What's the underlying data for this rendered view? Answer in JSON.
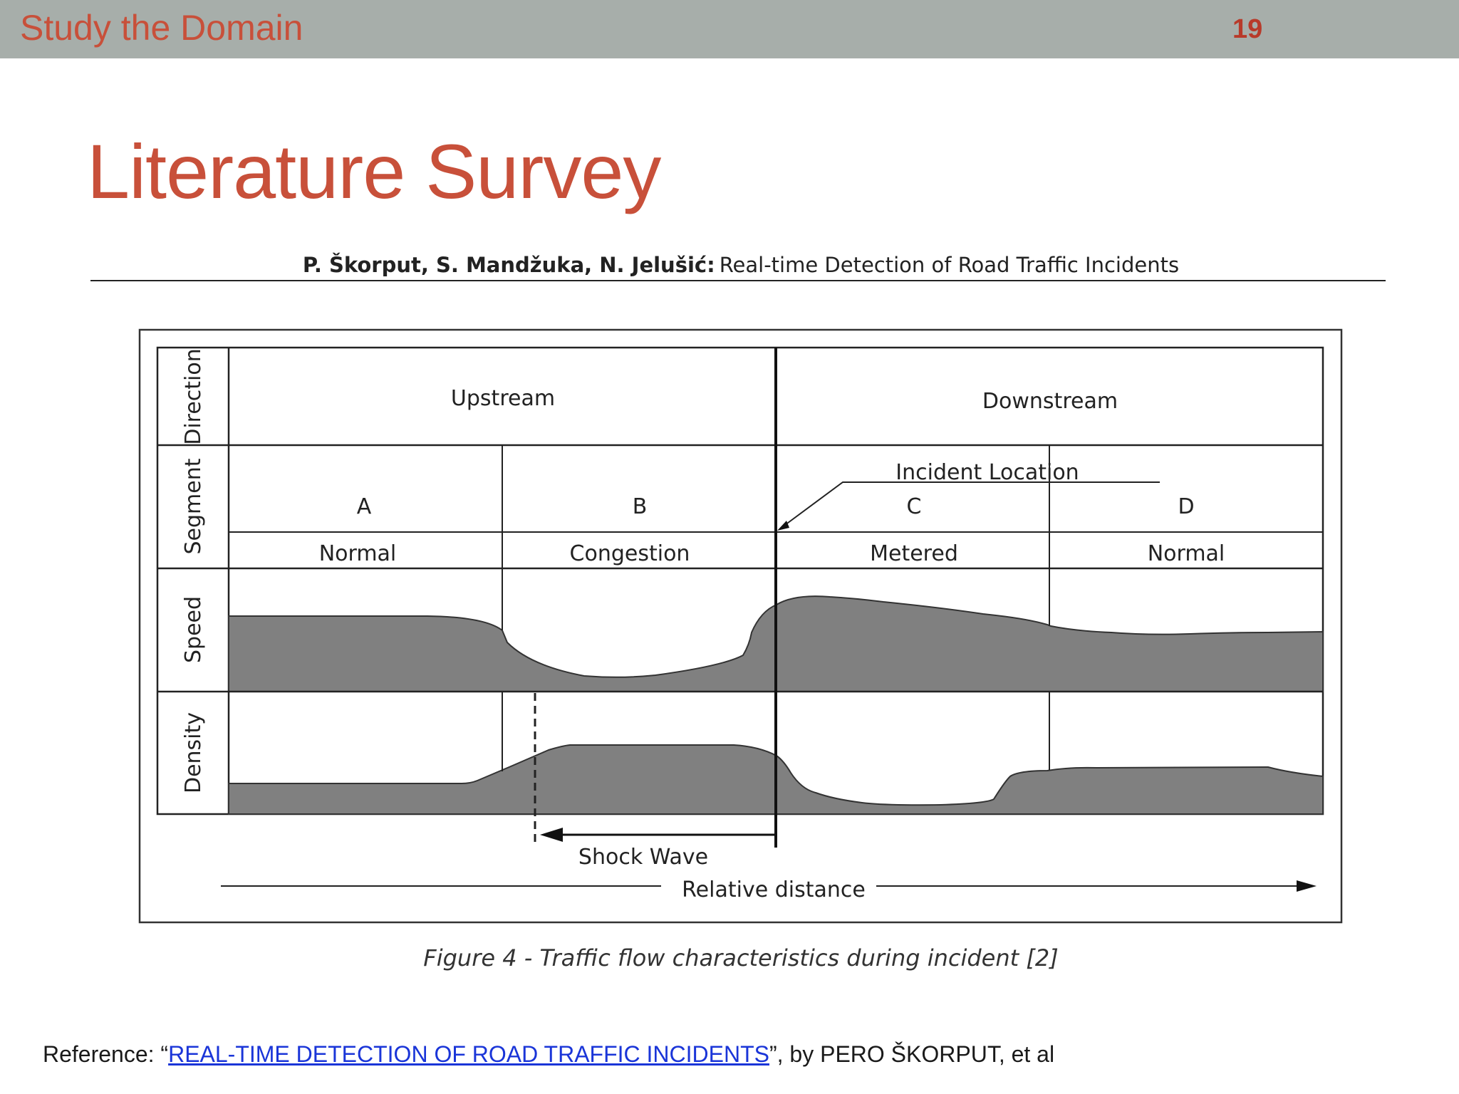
{
  "header": {
    "section": "Study the Domain",
    "page_number": "19"
  },
  "slide": {
    "title": "Literature Survey"
  },
  "paper": {
    "authors": "P. Škorput, S. Mandžuka, N. Jelušić:",
    "title": "Real-time Detection of Road Traffic Incidents"
  },
  "diagram": {
    "row_labels": {
      "direction": "Direction",
      "segment": "Segment",
      "speed": "Speed",
      "density": "Density"
    },
    "directions": {
      "upstream": "Upstream",
      "downstream": "Downstream"
    },
    "segments": [
      {
        "letter": "A",
        "state": "Normal"
      },
      {
        "letter": "B",
        "state": "Congestion"
      },
      {
        "letter": "C",
        "state": "Metered"
      },
      {
        "letter": "D",
        "state": "Normal"
      }
    ],
    "incident_label": "Incident Location",
    "shock_wave_label": "Shock Wave",
    "distance_label": "Relative distance",
    "fill_color": "#808080"
  },
  "caption": "Figure 4 - Traffic flow characteristics during incident [2]",
  "reference": {
    "prefix": "Reference: “",
    "link_text": "REAL-TIME DETECTION OF ROAD TRAFFIC INCIDENTS",
    "suffix": "”, by PERO ŠKORPUT, et al"
  }
}
